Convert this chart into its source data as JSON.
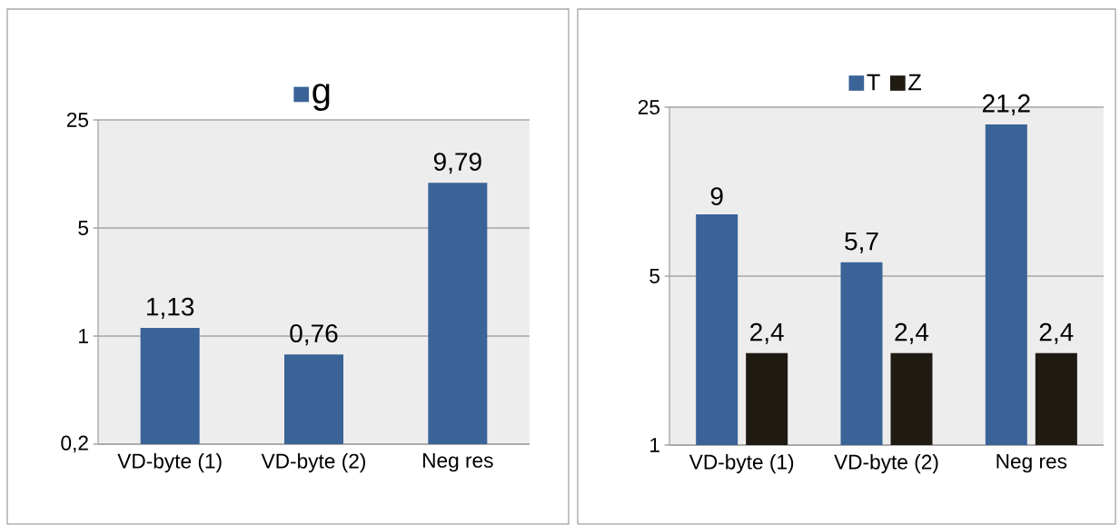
{
  "chart_data": [
    {
      "type": "bar",
      "categories": [
        "VD-byte (1)",
        "VD-byte (2)",
        "Neg res"
      ],
      "series": [
        {
          "name": "g",
          "color": "#3a6398",
          "values": [
            1.13,
            0.76,
            9.79
          ],
          "value_labels": [
            "1,13",
            "0,76",
            "9,79"
          ]
        }
      ],
      "log": "y",
      "ylim": [
        0.2,
        25
      ],
      "yticks": [
        {
          "value": 0.2,
          "label": "0,2"
        },
        1,
        5,
        25
      ],
      "grid": "y",
      "legend": "top"
    },
    {
      "type": "bar",
      "categories": [
        "VD-byte (1)",
        "VD-byte (2)",
        "Neg res"
      ],
      "series": [
        {
          "name": "T",
          "color": "#3a6398",
          "values": [
            9,
            5.7,
            21.2
          ],
          "value_labels": [
            "9",
            "5,7",
            "21,2"
          ]
        },
        {
          "name": "Z",
          "color": "#1f1a12",
          "values": [
            2.4,
            2.4,
            2.4
          ],
          "value_labels": [
            "2,4",
            "2,4",
            "2,4"
          ]
        }
      ],
      "log": "y",
      "ylim": [
        1,
        25
      ],
      "yticks": [
        1,
        5,
        25
      ],
      "grid": "y",
      "legend": "top"
    }
  ]
}
